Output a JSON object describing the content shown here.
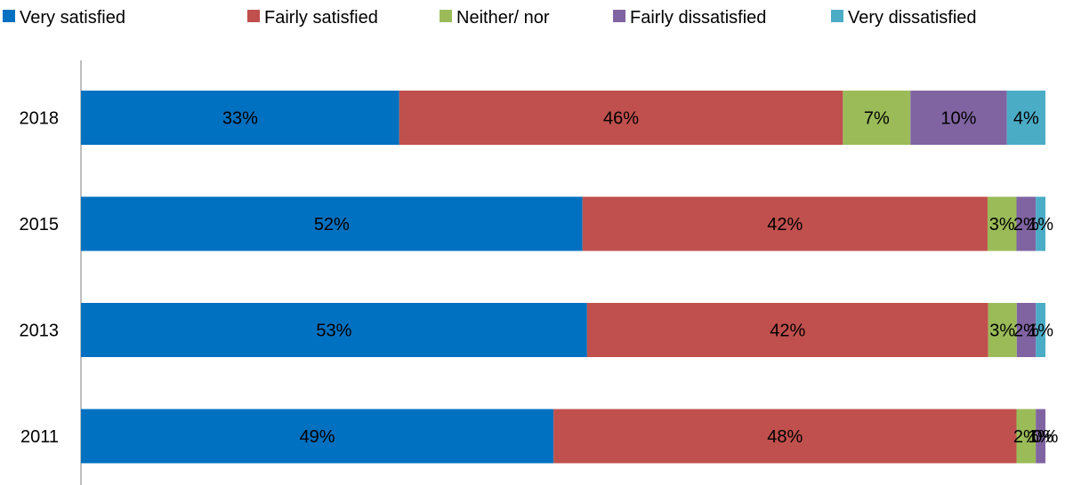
{
  "chart_data": {
    "type": "bar",
    "orientation": "horizontal",
    "stacked": true,
    "percent_stacked": true,
    "title": "",
    "xlabel": "",
    "ylabel": "",
    "xlim": [
      0,
      100
    ],
    "grid": false,
    "legend_position": "top",
    "categories": [
      "2018",
      "2015",
      "2013",
      "2011"
    ],
    "series": [
      {
        "name": "Very satisfied",
        "color": "#0070C0",
        "values": [
          33,
          52,
          53,
          49
        ],
        "labels": [
          "33%",
          "52%",
          "53%",
          "49%"
        ]
      },
      {
        "name": "Fairly satisfied",
        "color": "#C0504D",
        "values": [
          46,
          42,
          42,
          48
        ],
        "labels": [
          "46%",
          "42%",
          "42%",
          "48%"
        ]
      },
      {
        "name": "Neither/ nor",
        "color": "#9BBB59",
        "values": [
          7,
          3,
          3,
          2
        ],
        "labels": [
          "7%",
          "3%",
          "3%",
          "2%"
        ]
      },
      {
        "name": "Fairly dissatisfied",
        "color": "#8064A2",
        "values": [
          10,
          2,
          2,
          1
        ],
        "labels": [
          "10%",
          "2%",
          "2%",
          "1%"
        ]
      },
      {
        "name": "Very dissatisfied",
        "color": "#4BACC6",
        "values": [
          4,
          1,
          1,
          0
        ],
        "labels": [
          "4%",
          "1%",
          "1%",
          "0%"
        ]
      }
    ]
  }
}
